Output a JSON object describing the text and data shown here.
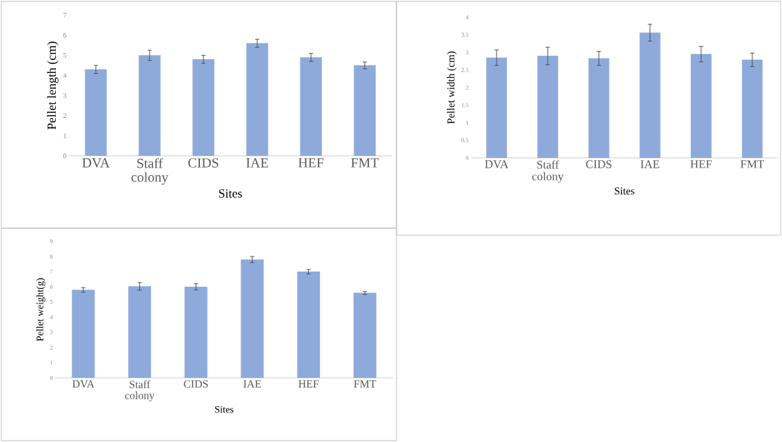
{
  "chart_data": [
    {
      "type": "bar",
      "categories": [
        "DVA",
        "Staff colony",
        "CIDS",
        "IAE",
        "HEF",
        "FMT"
      ],
      "values": [
        4.3,
        5.0,
        4.8,
        5.6,
        4.9,
        4.5
      ],
      "errors": [
        0.2,
        0.25,
        0.2,
        0.2,
        0.2,
        0.17
      ],
      "color": "#8eaadb",
      "xlabel": "Sites",
      "ylabel": "Pellet length (cm)",
      "ylim": [
        0,
        7
      ],
      "yticks": [
        0,
        1,
        2,
        3,
        4,
        5,
        6,
        7
      ]
    },
    {
      "type": "bar",
      "categories": [
        "DVA",
        "Staff colony",
        "CIDS",
        "IAE",
        "HEF",
        "FMT"
      ],
      "values": [
        2.85,
        2.9,
        2.83,
        3.56,
        2.95,
        2.79
      ],
      "errors": [
        0.22,
        0.25,
        0.2,
        0.24,
        0.22,
        0.19
      ],
      "color": "#8eaadb",
      "xlabel": "Sites",
      "ylabel": "Pellet width (cm)",
      "ylim": [
        0,
        4
      ],
      "yticks": [
        0,
        0.5,
        1,
        1.5,
        2,
        2.5,
        3,
        3.5,
        4
      ]
    },
    {
      "type": "bar",
      "categories": [
        "DVA",
        "Staff colony",
        "CIDS",
        "IAE",
        "HEF",
        "FMT"
      ],
      "values": [
        5.8,
        6.03,
        6.0,
        7.8,
        7.0,
        5.6
      ],
      "errors": [
        0.15,
        0.25,
        0.2,
        0.2,
        0.15,
        0.1
      ],
      "color": "#8eaadb",
      "xlabel": "Sites",
      "ylabel": "Pellet weight(g)",
      "ylim": [
        0,
        9
      ],
      "yticks": [
        0,
        1,
        2,
        3,
        4,
        5,
        6,
        7,
        8,
        9
      ]
    }
  ]
}
